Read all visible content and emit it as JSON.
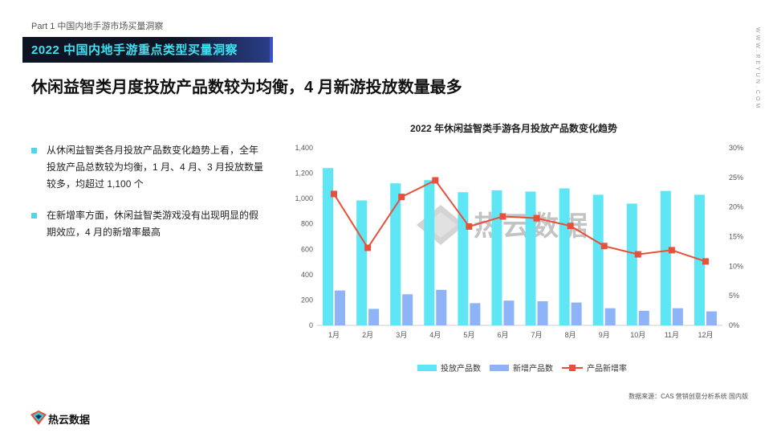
{
  "part_label": "Part 1  中国内地手游市场买量洞察",
  "section_title": "2022 中国内地手游重点类型买量洞察",
  "headline": "休闲益智类月度投放产品数较为均衡，4 月新游投放数量最多",
  "side_brand": "WWW.REYUN.COM",
  "bullets": [
    "从休闲益智类各月投放产品数变化趋势上看，全年投放产品总数较为均衡，1 月、4 月、3 月投放数量较多，均超过 1,100 个",
    "在新增率方面，休闲益智类游戏没有出现明显的假期效应，4 月的新增率最高"
  ],
  "watermark": "热云数据",
  "source": "数据来源：CAS 营销创意分析系统 国内版",
  "footer_brand": "热云数据",
  "colors": {
    "banner_bg": "#0f1424",
    "banner_text": "#3be3f2",
    "bar1": "#5ee6f4",
    "bar2": "#8fb3f7",
    "line": "#e8503a"
  },
  "chart_data": {
    "type": "bar",
    "title": "2022 年休闲益智类手游各月投放产品数变化趋势",
    "categories": [
      "1月",
      "2月",
      "3月",
      "4月",
      "5月",
      "6月",
      "7月",
      "8月",
      "9月",
      "10月",
      "11月",
      "12月"
    ],
    "series": [
      {
        "name": "投放产品数",
        "type": "bar",
        "axis": "left",
        "values": [
          1240,
          985,
          1120,
          1145,
          1050,
          1065,
          1055,
          1080,
          1030,
          960,
          1060,
          1030
        ]
      },
      {
        "name": "新增产品数",
        "type": "bar",
        "axis": "left",
        "values": [
          275,
          130,
          245,
          280,
          175,
          195,
          190,
          180,
          135,
          115,
          135,
          110
        ]
      },
      {
        "name": "产品新增率",
        "type": "line",
        "axis": "right",
        "values": [
          22.2,
          13.1,
          21.7,
          24.5,
          16.7,
          18.4,
          18.1,
          16.8,
          13.4,
          12.0,
          12.7,
          10.8
        ]
      }
    ],
    "y_left": {
      "min": 0,
      "max": 1400,
      "ticks": [
        "0",
        "200",
        "400",
        "600",
        "800",
        "1,000",
        "1,200",
        "1,400"
      ]
    },
    "y_right": {
      "min": 0,
      "max": 30,
      "ticks": [
        "0%",
        "5%",
        "10%",
        "15%",
        "20%",
        "25%",
        "30%"
      ]
    },
    "legend_position": "bottom",
    "grid": false
  }
}
